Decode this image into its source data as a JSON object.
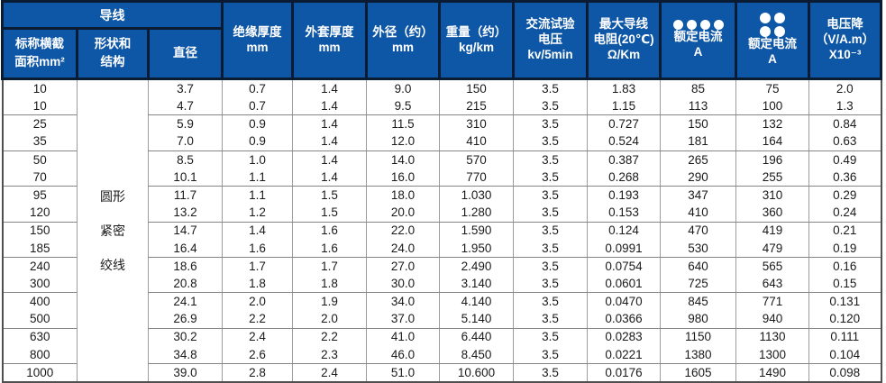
{
  "table": {
    "header": {
      "conductor_group": "导线",
      "nominal_area": {
        "lines": [
          "标称横截",
          "面积mm²"
        ]
      },
      "shape": {
        "lines": [
          "形状和",
          "结构"
        ]
      },
      "diameter": {
        "title": "直径"
      },
      "insulation": {
        "title": "绝缘厚度",
        "unit": "mm"
      },
      "sheath": {
        "title": "外套厚度",
        "unit": "mm"
      },
      "outer_diameter": {
        "title": "外径（约）",
        "unit": "mm"
      },
      "weight": {
        "title": "重量（约）",
        "unit": "kg/km"
      },
      "ac_test_voltage": {
        "lines": [
          "交流试验",
          "电压",
          "kv/5min"
        ]
      },
      "max_resistance": {
        "lines": [
          "最大导线",
          "电阻(20℃)",
          "Ω/Km"
        ]
      },
      "rated_current_row": {
        "icon": "four-dots-row-icon",
        "title": "额定电流",
        "unit": "A"
      },
      "rated_current_grid": {
        "icon": "four-dots-grid-icon",
        "title": "额定电流",
        "unit": "A"
      },
      "voltage_drop": {
        "lines": [
          "电压降",
          "（V/A.m）",
          "X10⁻³"
        ]
      }
    },
    "shape_cell": {
      "lines": [
        "圆形",
        "紧密",
        "绞线"
      ]
    },
    "column_keys": [
      "nominal-area",
      "diameter",
      "insulation-thickness",
      "sheath-thickness",
      "outer-diameter",
      "weight",
      "ac-test-voltage",
      "max-conductor-resistance",
      "rated-current-a",
      "rated-current-b",
      "voltage-drop"
    ],
    "rows": [
      [
        "10",
        "3.7",
        "0.7",
        "1.4",
        "9.0",
        "150",
        "3.5",
        "1.83",
        "85",
        "75",
        "2.0"
      ],
      [
        "10",
        "4.7",
        "0.7",
        "1.4",
        "9.5",
        "215",
        "3.5",
        "1.15",
        "113",
        "100",
        "1.3"
      ],
      [
        "25",
        "5.9",
        "0.9",
        "1.4",
        "11.5",
        "310",
        "3.5",
        "0.727",
        "150",
        "132",
        "0.84"
      ],
      [
        "35",
        "7.0",
        "0.9",
        "1.4",
        "12.0",
        "410",
        "3.5",
        "0.524",
        "181",
        "164",
        "0.63"
      ],
      [
        "50",
        "8.5",
        "1.0",
        "1.4",
        "14.0",
        "570",
        "3.5",
        "0.387",
        "265",
        "196",
        "0.49"
      ],
      [
        "70",
        "10.1",
        "1.1",
        "1.4",
        "16.0",
        "770",
        "3.5",
        "0.268",
        "290",
        "255",
        "0.36"
      ],
      [
        "95",
        "11.7",
        "1.1",
        "1.5",
        "18.0",
        "1.030",
        "3.5",
        "0.193",
        "347",
        "310",
        "0.29"
      ],
      [
        "120",
        "13.2",
        "1.2",
        "1.5",
        "20.0",
        "1.280",
        "3.5",
        "0.153",
        "410",
        "360",
        "0.24"
      ],
      [
        "150",
        "14.7",
        "1.4",
        "1.6",
        "22.0",
        "1.590",
        "3.5",
        "0.124",
        "470",
        "419",
        "0.21"
      ],
      [
        "185",
        "16.4",
        "1.6",
        "1.6",
        "24.0",
        "1.950",
        "3.5",
        "0.0991",
        "530",
        "479",
        "0.19"
      ],
      [
        "240",
        "18.6",
        "1.7",
        "1.7",
        "27.0",
        "2.490",
        "3.5",
        "0.0754",
        "640",
        "565",
        "0.16"
      ],
      [
        "300",
        "20.8",
        "1.8",
        "1.8",
        "30.0",
        "3.140",
        "3.5",
        "0.0601",
        "725",
        "643",
        "0.15"
      ],
      [
        "400",
        "24.1",
        "2.0",
        "1.9",
        "34.0",
        "4.140",
        "3.5",
        "0.0470",
        "845",
        "771",
        "0.131"
      ],
      [
        "500",
        "26.9",
        "2.2",
        "2.0",
        "37.0",
        "5.140",
        "3.5",
        "0.0366",
        "980",
        "940",
        "0.120"
      ],
      [
        "630",
        "30.2",
        "2.4",
        "2.2",
        "41.0",
        "6.440",
        "3.5",
        "0.0283",
        "1150",
        "1130",
        "0.111"
      ],
      [
        "800",
        "34.8",
        "2.6",
        "2.3",
        "46.0",
        "8.450",
        "3.5",
        "0.0221",
        "1380",
        "1300",
        "0.104"
      ],
      [
        "1000",
        "39.0",
        "2.8",
        "2.4",
        "51.0",
        "10.600",
        "3.5",
        "0.0176",
        "1605",
        "1490",
        "0.098"
      ]
    ],
    "colors": {
      "header_bg": "#0e57a6",
      "header_border": "#0a1c33",
      "grid_line": "#8f8f8f",
      "outer_border": "#4f4f4f",
      "header_text": "#ffffff",
      "body_text": "#1a1a1a"
    }
  }
}
